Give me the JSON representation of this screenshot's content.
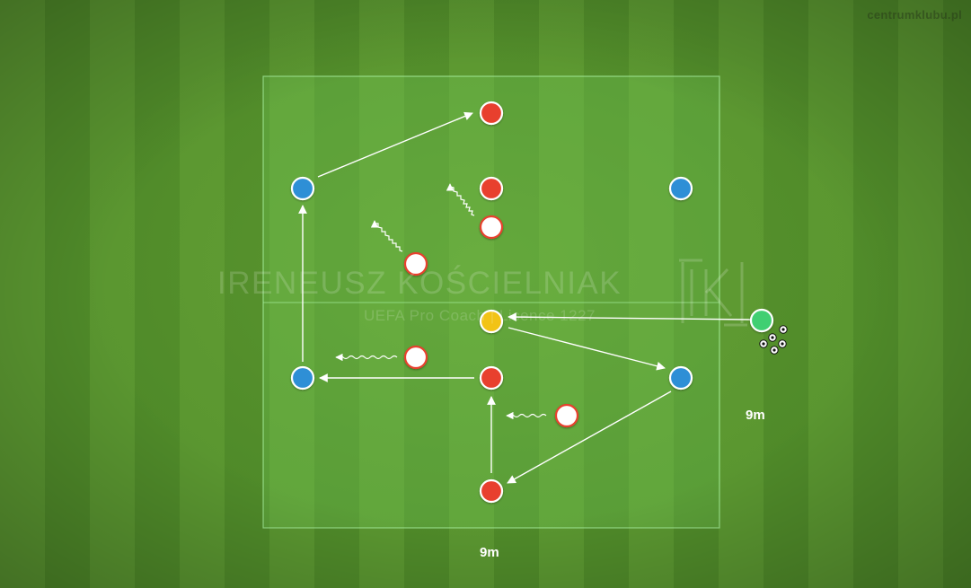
{
  "site_watermark": "centrumklubu.pl",
  "coach": {
    "name": "IRENEUSZ KOŚCIELNIAK",
    "licence": "UEFA Pro Coach  |  Licence 1227"
  },
  "dimensions": {
    "width_label": "9m",
    "height_label": "9m"
  },
  "colors": {
    "pitch_light": "#5a9630",
    "pitch_dark": "#4f8a29",
    "area_fill": "#6fc85a",
    "area_border": "#9ff09a",
    "blue_player": "#2f8fd6",
    "red_player": "#e8402f",
    "white_defender": "#ffffff",
    "yellow_player": "#f2c318",
    "green_coach": "#3fcf72",
    "arrow": "#ffffff"
  },
  "legend_icons": {
    "blue": "blue-player-marker",
    "red": "red-player-marker",
    "white": "defender-marker",
    "yellow": "pivot-player-marker",
    "green": "coach-server-marker",
    "balls": "ball-supply-icon"
  }
}
